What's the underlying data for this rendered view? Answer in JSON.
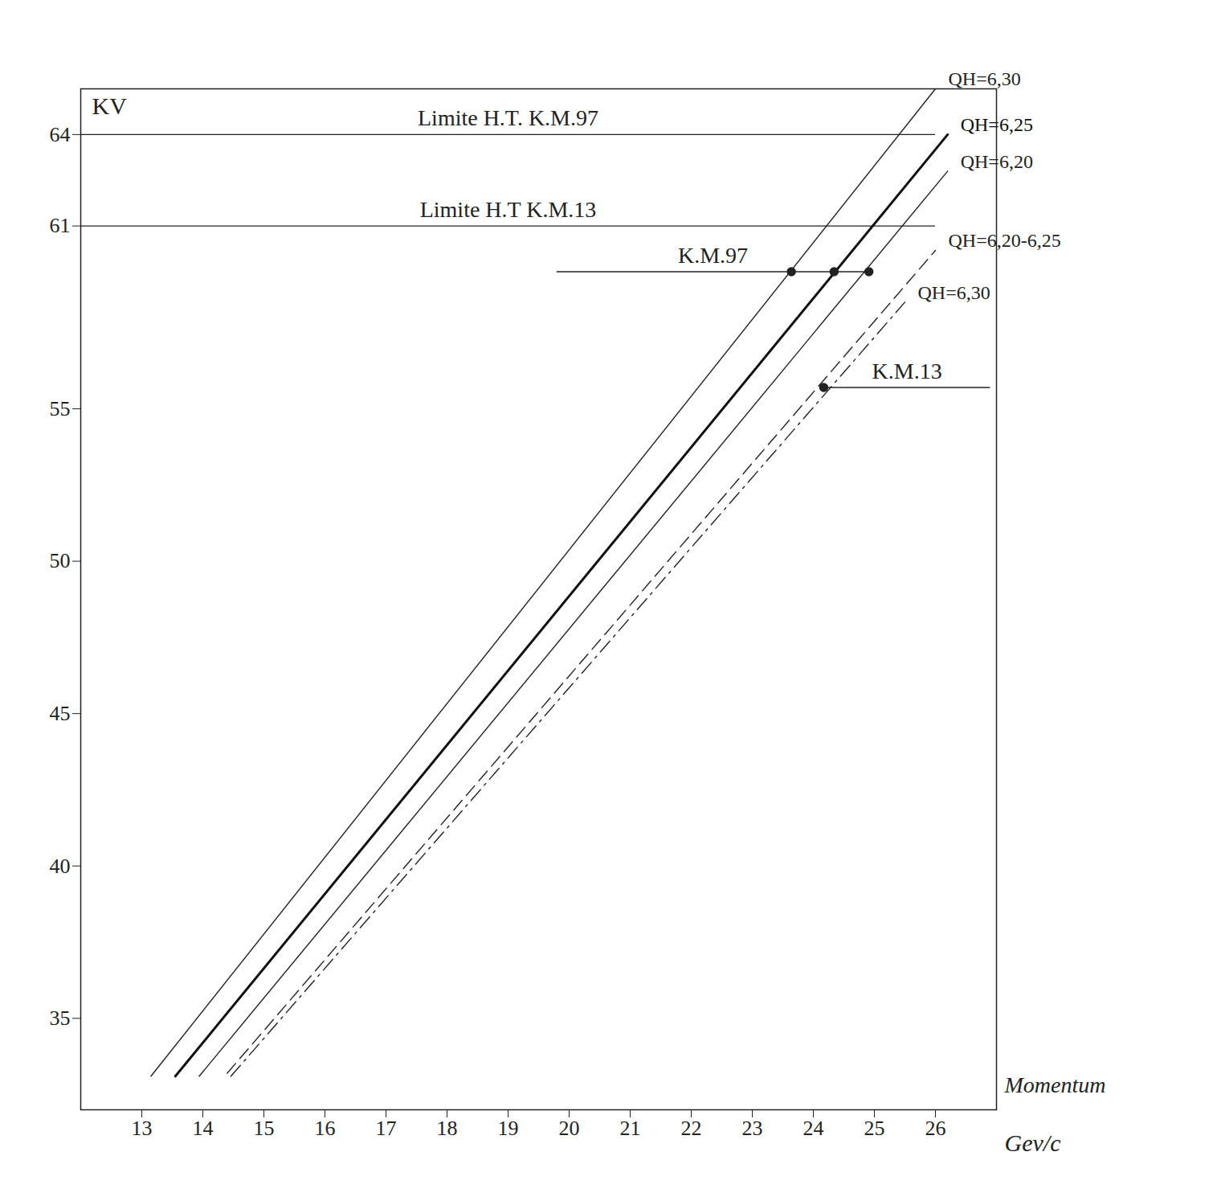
{
  "chart_data": {
    "type": "line",
    "x_label": "Momentum",
    "x_unit": "Gev/c",
    "y_label": "KV",
    "xlim": [
      12,
      27
    ],
    "ylim": [
      32,
      65.5
    ],
    "xticks": [
      13,
      14,
      15,
      16,
      17,
      18,
      19,
      20,
      21,
      22,
      23,
      24,
      25,
      26
    ],
    "yticks": [
      35,
      40,
      45,
      50,
      55,
      61,
      64
    ],
    "grid": false,
    "series": [
      {
        "name": "QH=6,30",
        "color": "#222222",
        "line_style": "solid",
        "values": [
          [
            13.15,
            33.1
          ],
          [
            26.0,
            65.5
          ]
        ]
      },
      {
        "name": "QH=6,25",
        "color": "#111111",
        "line_style": "bold",
        "values": [
          [
            13.55,
            33.1
          ],
          [
            26.2,
            64
          ]
        ]
      },
      {
        "name": "QH=6,20",
        "color": "#222222",
        "line_style": "solid",
        "values": [
          [
            13.94,
            33.1
          ],
          [
            26.2,
            62.8
          ]
        ]
      },
      {
        "name": "QH=6,20-6,25",
        "color": "#222222",
        "line_style": "dashed",
        "values": [
          [
            14.4,
            33.2
          ],
          [
            26.0,
            60.2
          ]
        ]
      },
      {
        "name": "QH=6,30",
        "color": "#222222",
        "line_style": "dashdot",
        "values": [
          [
            14.46,
            33.1
          ],
          [
            25.5,
            58.5
          ]
        ]
      }
    ],
    "points": [
      [
        23.64,
        59.5
      ],
      [
        24.34,
        59.5
      ],
      [
        24.91,
        59.5
      ],
      [
        24.17,
        55.7
      ]
    ],
    "annotations": [
      {
        "text": "Limite H.T. K.M.97",
        "x": [
          12,
          26
        ],
        "y": 64
      },
      {
        "text": "Limite H.T K.M.13",
        "x": [
          12,
          26
        ],
        "y": 61
      },
      {
        "text": "K.M.97",
        "x": [
          19.8,
          24.91
        ],
        "y": 59.5
      },
      {
        "text": "K.M.13",
        "x": [
          24.17,
          26.9
        ],
        "y": 55.7
      }
    ]
  }
}
